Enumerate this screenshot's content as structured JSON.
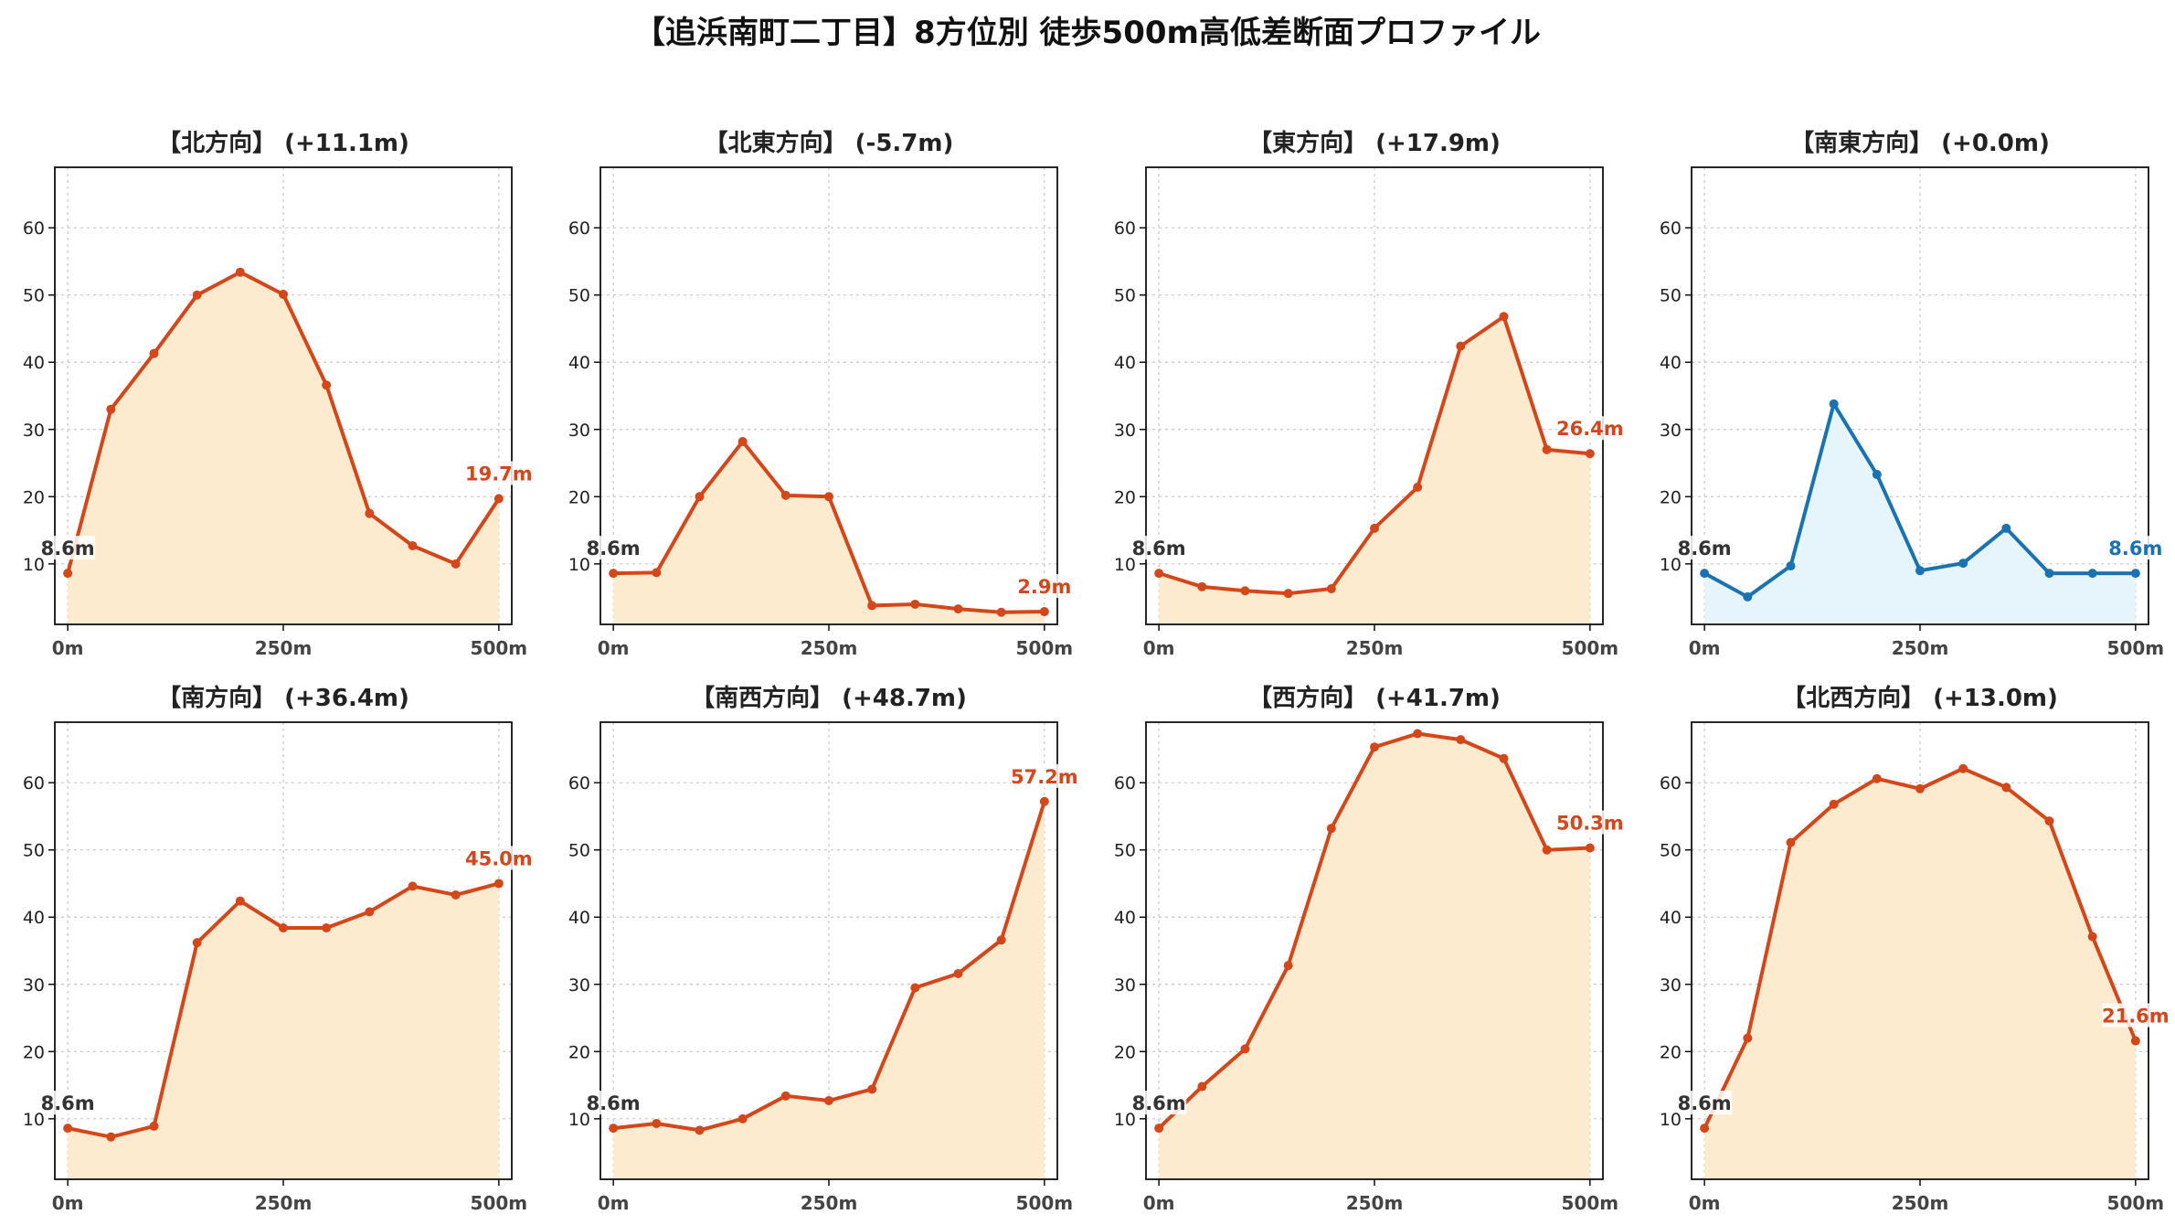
{
  "title": "【追浜南町二丁目】8方位別 徒歩500m高低差断面プロファイル",
  "colors": {
    "rise_line": "#d4471a",
    "rise_fill": "#fdebcf",
    "flat_line": "#1a73b0",
    "flat_fill": "#e6f4fb",
    "start_label": "#333333",
    "grid": "#c8c8c8"
  },
  "chart_data": [
    {
      "type": "area",
      "title": "【北方向】 (+11.1m)",
      "trend": "rise",
      "x": [
        0,
        50,
        100,
        150,
        200,
        250,
        300,
        350,
        400,
        450,
        500
      ],
      "values": [
        8.6,
        33.0,
        41.3,
        50.0,
        53.4,
        50.1,
        36.6,
        17.5,
        12.7,
        10.0,
        19.7
      ],
      "xticks": [
        "0m",
        "250m",
        "500m"
      ],
      "yticks": [
        "10",
        "20",
        "30",
        "40",
        "50",
        "60"
      ],
      "ylim": [
        1,
        69
      ],
      "xlim": [
        -15,
        515
      ],
      "grid": true,
      "start_label": "8.6m",
      "end_label": "19.7m"
    },
    {
      "type": "area",
      "title": "【北東方向】 (-5.7m)",
      "trend": "rise",
      "x": [
        0,
        50,
        100,
        150,
        200,
        250,
        300,
        350,
        400,
        450,
        500
      ],
      "values": [
        8.6,
        8.7,
        20.0,
        28.2,
        20.2,
        20.0,
        3.8,
        4.0,
        3.3,
        2.8,
        2.9
      ],
      "xticks": [
        "0m",
        "250m",
        "500m"
      ],
      "yticks": [
        "10",
        "20",
        "30",
        "40",
        "50",
        "60"
      ],
      "ylim": [
        1,
        69
      ],
      "xlim": [
        -15,
        515
      ],
      "grid": true,
      "start_label": "8.6m",
      "end_label": "2.9m"
    },
    {
      "type": "area",
      "title": "【東方向】 (+17.9m)",
      "trend": "rise",
      "x": [
        0,
        50,
        100,
        150,
        200,
        250,
        300,
        350,
        400,
        450,
        500
      ],
      "values": [
        8.6,
        6.6,
        6.0,
        5.6,
        6.3,
        15.3,
        21.4,
        42.4,
        46.8,
        27.0,
        26.4
      ],
      "xticks": [
        "0m",
        "250m",
        "500m"
      ],
      "yticks": [
        "10",
        "20",
        "30",
        "40",
        "50",
        "60"
      ],
      "ylim": [
        1,
        69
      ],
      "xlim": [
        -15,
        515
      ],
      "grid": true,
      "start_label": "8.6m",
      "end_label": "26.4m"
    },
    {
      "type": "area",
      "title": "【南東方向】 (+0.0m)",
      "trend": "flat",
      "x": [
        0,
        50,
        100,
        150,
        200,
        250,
        300,
        350,
        400,
        450,
        500
      ],
      "values": [
        8.6,
        5.1,
        9.7,
        33.8,
        23.3,
        9.0,
        10.1,
        15.3,
        8.6,
        8.6,
        8.6
      ],
      "xticks": [
        "0m",
        "250m",
        "500m"
      ],
      "yticks": [
        "10",
        "20",
        "30",
        "40",
        "50",
        "60"
      ],
      "ylim": [
        1,
        69
      ],
      "xlim": [
        -15,
        515
      ],
      "grid": true,
      "start_label": "8.6m",
      "end_label": "8.6m"
    },
    {
      "type": "area",
      "title": "【南方向】 (+36.4m)",
      "trend": "rise",
      "x": [
        0,
        50,
        100,
        150,
        200,
        250,
        300,
        350,
        400,
        450,
        500
      ],
      "values": [
        8.6,
        7.3,
        8.9,
        36.2,
        42.4,
        38.4,
        38.4,
        40.8,
        44.6,
        43.3,
        45.0
      ],
      "xticks": [
        "0m",
        "250m",
        "500m"
      ],
      "yticks": [
        "10",
        "20",
        "30",
        "40",
        "50",
        "60"
      ],
      "ylim": [
        1,
        69
      ],
      "xlim": [
        -15,
        515
      ],
      "grid": true,
      "start_label": "8.6m",
      "end_label": "45.0m"
    },
    {
      "type": "area",
      "title": "【南西方向】 (+48.7m)",
      "trend": "rise",
      "x": [
        0,
        50,
        100,
        150,
        200,
        250,
        300,
        350,
        400,
        450,
        500
      ],
      "values": [
        8.6,
        9.3,
        8.3,
        10.0,
        13.4,
        12.7,
        14.4,
        29.5,
        31.6,
        36.6,
        57.2
      ],
      "xticks": [
        "0m",
        "250m",
        "500m"
      ],
      "yticks": [
        "10",
        "20",
        "30",
        "40",
        "50",
        "60"
      ],
      "ylim": [
        1,
        69
      ],
      "xlim": [
        -15,
        515
      ],
      "grid": true,
      "start_label": "8.6m",
      "end_label": "57.2m"
    },
    {
      "type": "area",
      "title": "【西方向】 (+41.7m)",
      "trend": "rise",
      "x": [
        0,
        50,
        100,
        150,
        200,
        250,
        300,
        350,
        400,
        450,
        500
      ],
      "values": [
        8.6,
        14.8,
        20.4,
        32.8,
        53.2,
        65.3,
        67.3,
        66.4,
        63.6,
        50.0,
        50.3
      ],
      "xticks": [
        "0m",
        "250m",
        "500m"
      ],
      "yticks": [
        "10",
        "20",
        "30",
        "40",
        "50",
        "60"
      ],
      "ylim": [
        1,
        69
      ],
      "xlim": [
        -15,
        515
      ],
      "grid": true,
      "start_label": "8.6m",
      "end_label": "50.3m"
    },
    {
      "type": "area",
      "title": "【北西方向】 (+13.0m)",
      "trend": "rise",
      "x": [
        0,
        50,
        100,
        150,
        200,
        250,
        300,
        350,
        400,
        450,
        500
      ],
      "values": [
        8.6,
        22.0,
        51.1,
        56.8,
        60.6,
        59.1,
        62.1,
        59.3,
        54.3,
        37.1,
        21.6
      ],
      "xticks": [
        "0m",
        "250m",
        "500m"
      ],
      "yticks": [
        "10",
        "20",
        "30",
        "40",
        "50",
        "60"
      ],
      "ylim": [
        1,
        69
      ],
      "xlim": [
        -15,
        515
      ],
      "grid": true,
      "start_label": "8.6m",
      "end_label": "21.6m"
    }
  ]
}
